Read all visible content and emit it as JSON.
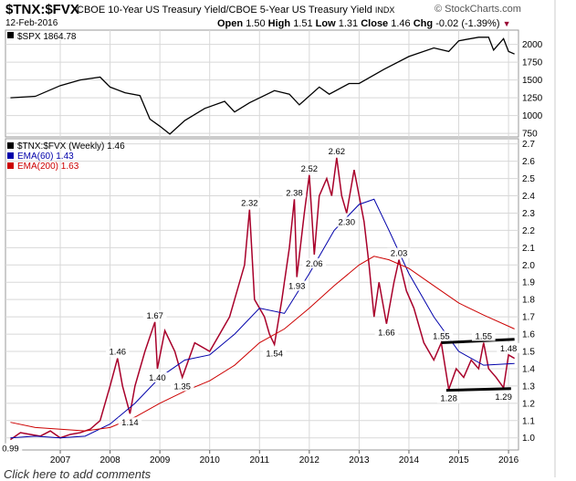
{
  "header": {
    "symbol": "$TNX:$FVX",
    "fullname": "CBOE 10-Year US Treasury Yield/CBOE 5-Year US Treasury Yield",
    "exchange": "INDX",
    "date": "12-Feb-2016",
    "brand": "© StockCharts.com",
    "quote": {
      "open_label": "Open",
      "open": "1.50",
      "high_label": "High",
      "high": "1.51",
      "low_label": "Low",
      "low": "1.31",
      "close_label": "Close",
      "close": "1.46",
      "chg_label": "Chg",
      "chg": "-0.02 (-1.39%)"
    }
  },
  "footer": {
    "text": "Click here to add comments"
  },
  "colors": {
    "price": "#a8002a",
    "price_up": "#000000",
    "ema60": "#0000aa",
    "ema200": "#cc0000",
    "spx": "#000000",
    "grid": "#d8d8d8",
    "level_line": "#000000"
  },
  "chart_data": [
    {
      "type": "line",
      "legend": "$SPX 1864.78",
      "ylim": [
        700,
        2200
      ],
      "yticks": [
        750,
        1000,
        1250,
        1500,
        1750,
        2000
      ],
      "grid": true,
      "series": [
        {
          "name": "$SPX",
          "x": [
            2006.0,
            2006.5,
            2007.0,
            2007.4,
            2007.8,
            2008.0,
            2008.3,
            2008.6,
            2008.8,
            2009.0,
            2009.2,
            2009.5,
            2009.9,
            2010.3,
            2010.5,
            2010.8,
            2011.3,
            2011.6,
            2011.8,
            2012.2,
            2012.4,
            2012.8,
            2013.0,
            2013.5,
            2014.0,
            2014.5,
            2014.8,
            2015.0,
            2015.4,
            2015.6,
            2015.7,
            2015.9,
            2016.0,
            2016.12
          ],
          "values": [
            1250,
            1270,
            1420,
            1500,
            1540,
            1400,
            1320,
            1280,
            950,
            850,
            740,
            930,
            1100,
            1200,
            1050,
            1180,
            1350,
            1300,
            1150,
            1400,
            1300,
            1450,
            1450,
            1650,
            1830,
            1950,
            1900,
            2050,
            2100,
            2100,
            1920,
            2080,
            1900,
            1864
          ]
        }
      ]
    },
    {
      "type": "line",
      "legend": [
        "$TNX:$FVX (Weekly) 1.46",
        "EMA(60) 1.43",
        "EMA(200) 1.63"
      ],
      "ylim": [
        0.93,
        2.73
      ],
      "yticks": [
        1.0,
        1.1,
        1.2,
        1.3,
        1.4,
        1.5,
        1.6,
        1.7,
        1.8,
        1.9,
        2.0,
        2.1,
        2.2,
        2.3,
        2.4,
        2.5,
        2.6,
        2.7
      ],
      "xticks": [
        "2007",
        "2008",
        "2009",
        "2010",
        "2011",
        "2012",
        "2013",
        "2014",
        "2015",
        "2016"
      ],
      "grid": true,
      "annotations": [
        {
          "label": "0.99",
          "x": 2006.0,
          "y": 0.99
        },
        {
          "label": "1.46",
          "x": 2008.15,
          "y": 1.46
        },
        {
          "label": "1.14",
          "x": 2008.4,
          "y": 1.14
        },
        {
          "label": "1.67",
          "x": 2008.9,
          "y": 1.67
        },
        {
          "label": "1.40",
          "x": 2008.95,
          "y": 1.4
        },
        {
          "label": "1.35",
          "x": 2009.45,
          "y": 1.35
        },
        {
          "label": "2.32",
          "x": 2010.8,
          "y": 2.32
        },
        {
          "label": "1.54",
          "x": 2011.3,
          "y": 1.54
        },
        {
          "label": "2.38",
          "x": 2011.7,
          "y": 2.38
        },
        {
          "label": "1.93",
          "x": 2011.75,
          "y": 1.93
        },
        {
          "label": "2.52",
          "x": 2012.0,
          "y": 2.52
        },
        {
          "label": "2.06",
          "x": 2012.1,
          "y": 2.06
        },
        {
          "label": "2.62",
          "x": 2012.55,
          "y": 2.62
        },
        {
          "label": "2.30",
          "x": 2012.75,
          "y": 2.3
        },
        {
          "label": "2.03",
          "x": 2013.8,
          "y": 2.03
        },
        {
          "label": "1.66",
          "x": 2013.55,
          "y": 1.66
        },
        {
          "label": "1.55",
          "x": 2014.65,
          "y": 1.55
        },
        {
          "label": "1.55",
          "x": 2015.5,
          "y": 1.55
        },
        {
          "label": "1.48",
          "x": 2016.0,
          "y": 1.48
        },
        {
          "label": "1.28",
          "x": 2014.8,
          "y": 1.28
        },
        {
          "label": "1.29",
          "x": 2015.9,
          "y": 1.29
        }
      ],
      "levels": [
        {
          "x": [
            2014.65,
            2016.12
          ],
          "y": [
            1.55,
            1.57
          ]
        },
        {
          "x": [
            2014.75,
            2016.05
          ],
          "y": [
            1.275,
            1.285
          ]
        }
      ],
      "series": [
        {
          "name": "$TNX:$FVX",
          "x": [
            2006.0,
            2006.2,
            2006.4,
            2006.6,
            2006.8,
            2007.0,
            2007.2,
            2007.4,
            2007.6,
            2007.8,
            2008.0,
            2008.15,
            2008.25,
            2008.4,
            2008.5,
            2008.7,
            2008.9,
            2008.95,
            2009.1,
            2009.3,
            2009.45,
            2009.7,
            2010.0,
            2010.2,
            2010.4,
            2010.55,
            2010.7,
            2010.8,
            2010.9,
            2011.0,
            2011.1,
            2011.2,
            2011.3,
            2011.45,
            2011.6,
            2011.7,
            2011.75,
            2011.9,
            2012.0,
            2012.1,
            2012.2,
            2012.35,
            2012.45,
            2012.55,
            2012.65,
            2012.75,
            2012.9,
            2013.0,
            2013.1,
            2013.2,
            2013.3,
            2013.4,
            2013.55,
            2013.7,
            2013.8,
            2013.95,
            2014.1,
            2014.3,
            2014.5,
            2014.65,
            2014.8,
            2014.95,
            2015.1,
            2015.25,
            2015.4,
            2015.5,
            2015.6,
            2015.75,
            2015.9,
            2016.0,
            2016.12
          ],
          "values": [
            0.99,
            1.03,
            1.02,
            1.01,
            1.04,
            1.0,
            1.02,
            1.03,
            1.05,
            1.1,
            1.3,
            1.46,
            1.3,
            1.14,
            1.3,
            1.5,
            1.67,
            1.4,
            1.62,
            1.5,
            1.35,
            1.55,
            1.5,
            1.6,
            1.7,
            1.85,
            2.0,
            2.32,
            1.8,
            1.75,
            1.7,
            1.6,
            1.54,
            1.8,
            2.1,
            2.38,
            1.93,
            2.3,
            2.52,
            2.06,
            2.4,
            2.5,
            2.4,
            2.62,
            2.4,
            2.3,
            2.55,
            2.4,
            2.25,
            2.0,
            1.7,
            1.9,
            1.66,
            1.9,
            2.03,
            1.85,
            1.75,
            1.55,
            1.45,
            1.55,
            1.28,
            1.4,
            1.35,
            1.45,
            1.4,
            1.55,
            1.4,
            1.35,
            1.29,
            1.48,
            1.46
          ]
        },
        {
          "name": "EMA(60)",
          "x": [
            2006.0,
            2006.5,
            2007.0,
            2007.5,
            2008.0,
            2008.5,
            2009.0,
            2009.5,
            2010.0,
            2010.5,
            2011.0,
            2011.5,
            2012.0,
            2012.5,
            2013.0,
            2013.3,
            2013.6,
            2014.0,
            2014.5,
            2015.0,
            2015.5,
            2016.12
          ],
          "values": [
            1.0,
            1.01,
            1.0,
            1.01,
            1.08,
            1.2,
            1.35,
            1.45,
            1.48,
            1.6,
            1.75,
            1.72,
            1.95,
            2.2,
            2.35,
            2.38,
            2.2,
            1.95,
            1.7,
            1.5,
            1.42,
            1.43
          ]
        },
        {
          "name": "EMA(200)",
          "x": [
            2006.0,
            2006.5,
            2007.0,
            2007.5,
            2008.0,
            2008.5,
            2009.0,
            2009.5,
            2010.0,
            2010.5,
            2011.0,
            2011.5,
            2012.0,
            2012.5,
            2013.0,
            2013.3,
            2013.6,
            2014.0,
            2014.5,
            2015.0,
            2015.5,
            2016.12
          ],
          "values": [
            1.09,
            1.06,
            1.05,
            1.04,
            1.06,
            1.12,
            1.2,
            1.27,
            1.33,
            1.42,
            1.55,
            1.63,
            1.75,
            1.88,
            2.0,
            2.05,
            2.03,
            1.98,
            1.88,
            1.78,
            1.71,
            1.63
          ]
        }
      ]
    }
  ]
}
